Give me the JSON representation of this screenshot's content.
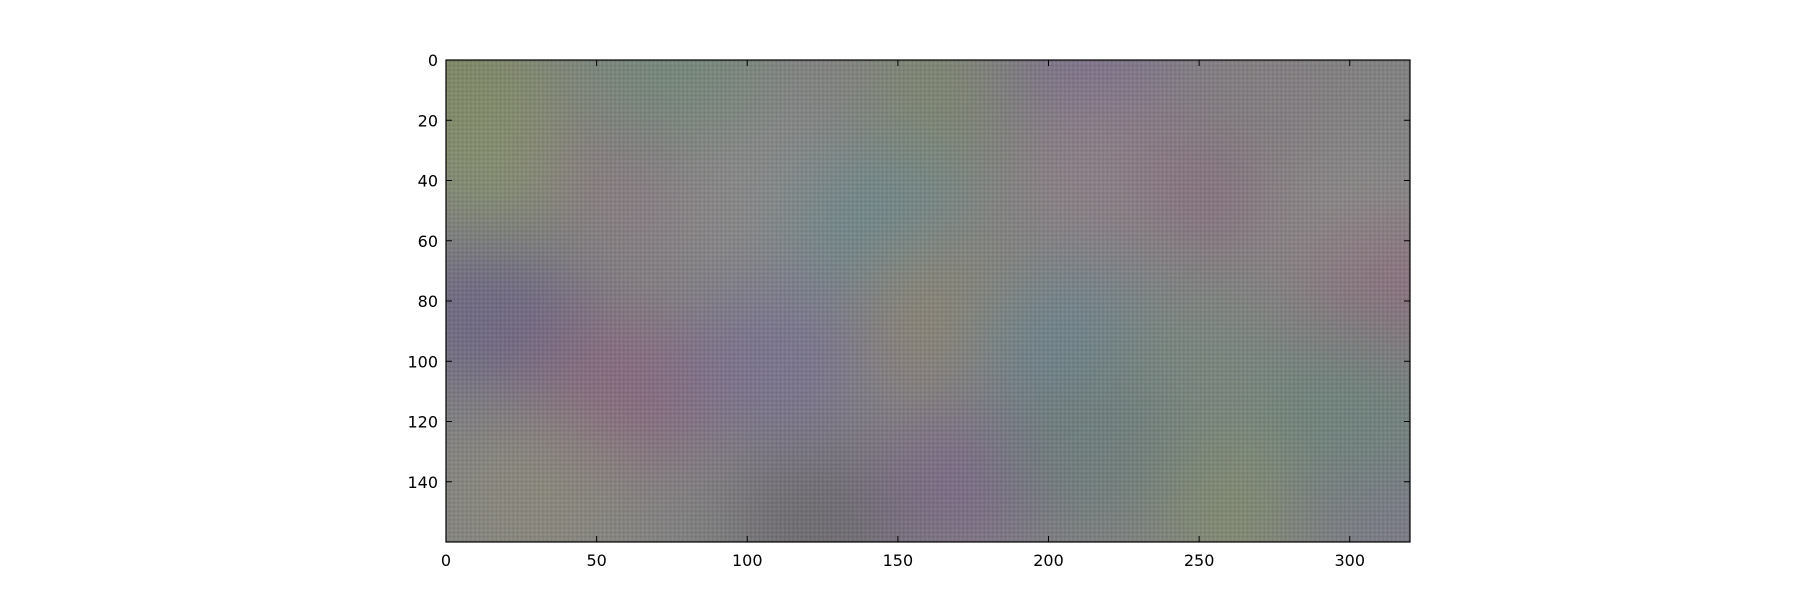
{
  "chart_data": {
    "type": "heatmap",
    "title": "",
    "xlabel": "",
    "ylabel": "",
    "xlim": [
      0,
      320
    ],
    "ylim": [
      160,
      0
    ],
    "x_ticks": [
      0,
      50,
      100,
      150,
      200,
      250,
      300
    ],
    "y_ticks": [
      0,
      20,
      40,
      60,
      80,
      100,
      120,
      140
    ],
    "x_tick_labels": [
      "0",
      "50",
      "100",
      "150",
      "200",
      "250",
      "300"
    ],
    "y_tick_labels": [
      "0",
      "20",
      "40",
      "60",
      "80",
      "100",
      "120",
      "140"
    ],
    "grid": false,
    "legend": "none",
    "image_background": "#838383",
    "checkerboard_overlay": true,
    "color_blobs": [
      {
        "x": 5,
        "y": 10,
        "color": "#7f8a5f"
      },
      {
        "x": 20,
        "y": 35,
        "color": "#869070"
      },
      {
        "x": 65,
        "y": 35,
        "color": "#8c7a84"
      },
      {
        "x": 75,
        "y": 5,
        "color": "#748a7a"
      },
      {
        "x": 105,
        "y": 45,
        "color": "#8b8b8b"
      },
      {
        "x": 145,
        "y": 55,
        "color": "#6f8a8d"
      },
      {
        "x": 170,
        "y": 10,
        "color": "#7e8770"
      },
      {
        "x": 215,
        "y": 5,
        "color": "#7c6f8e"
      },
      {
        "x": 220,
        "y": 35,
        "color": "#8e8088"
      },
      {
        "x": 265,
        "y": 40,
        "color": "#8a6f80"
      },
      {
        "x": 270,
        "y": 10,
        "color": "#847f83"
      },
      {
        "x": 300,
        "y": 55,
        "color": "#8c8c8a"
      },
      {
        "x": 15,
        "y": 85,
        "color": "#6d6585"
      },
      {
        "x": 60,
        "y": 110,
        "color": "#8a6880"
      },
      {
        "x": 110,
        "y": 100,
        "color": "#7a7392"
      },
      {
        "x": 170,
        "y": 85,
        "color": "#8e8572"
      },
      {
        "x": 205,
        "y": 95,
        "color": "#6c8590"
      },
      {
        "x": 250,
        "y": 105,
        "color": "#7a877e"
      },
      {
        "x": 315,
        "y": 80,
        "color": "#8d7080"
      },
      {
        "x": 30,
        "y": 145,
        "color": "#8c8a7c"
      },
      {
        "x": 125,
        "y": 155,
        "color": "#6c6a70"
      },
      {
        "x": 175,
        "y": 140,
        "color": "#7c6a88"
      },
      {
        "x": 215,
        "y": 130,
        "color": "#6e7f7c"
      },
      {
        "x": 270,
        "y": 150,
        "color": "#828d6e"
      },
      {
        "x": 310,
        "y": 150,
        "color": "#7a7a88"
      },
      {
        "x": 300,
        "y": 115,
        "color": "#6e857c"
      }
    ]
  }
}
